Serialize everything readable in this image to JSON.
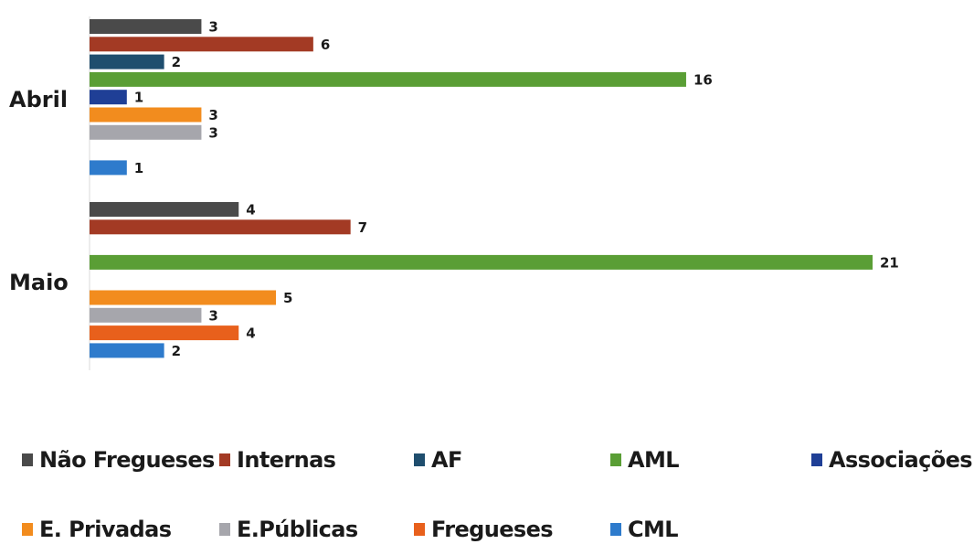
{
  "chart_data": {
    "type": "bar",
    "orientation": "horizontal",
    "categories": [
      "Abril",
      "Maio"
    ],
    "series": [
      {
        "name": "Não Fregueses",
        "color": "#4a4a4a",
        "values": [
          3,
          4
        ]
      },
      {
        "name": "Internas",
        "color": "#a33a24",
        "values": [
          6,
          7
        ]
      },
      {
        "name": "AF",
        "color": "#1f4e6e",
        "values": [
          2,
          null
        ]
      },
      {
        "name": "AML",
        "color": "#5a9e35",
        "values": [
          16,
          21
        ]
      },
      {
        "name": "Associações",
        "color": "#1f3f96",
        "values": [
          1,
          null
        ]
      },
      {
        "name": "E. Privadas",
        "color": "#f28c1e",
        "values": [
          3,
          5
        ]
      },
      {
        "name": "E.Públicas",
        "color": "#a6a6ac",
        "values": [
          3,
          3
        ]
      },
      {
        "name": "Fregueses",
        "color": "#e8601c",
        "values": [
          null,
          4
        ]
      },
      {
        "name": "CML",
        "color": "#2e7bcc",
        "values": [
          1,
          2
        ]
      }
    ],
    "xlim": [
      0,
      21
    ],
    "grid": false,
    "legend_position": "bottom"
  }
}
